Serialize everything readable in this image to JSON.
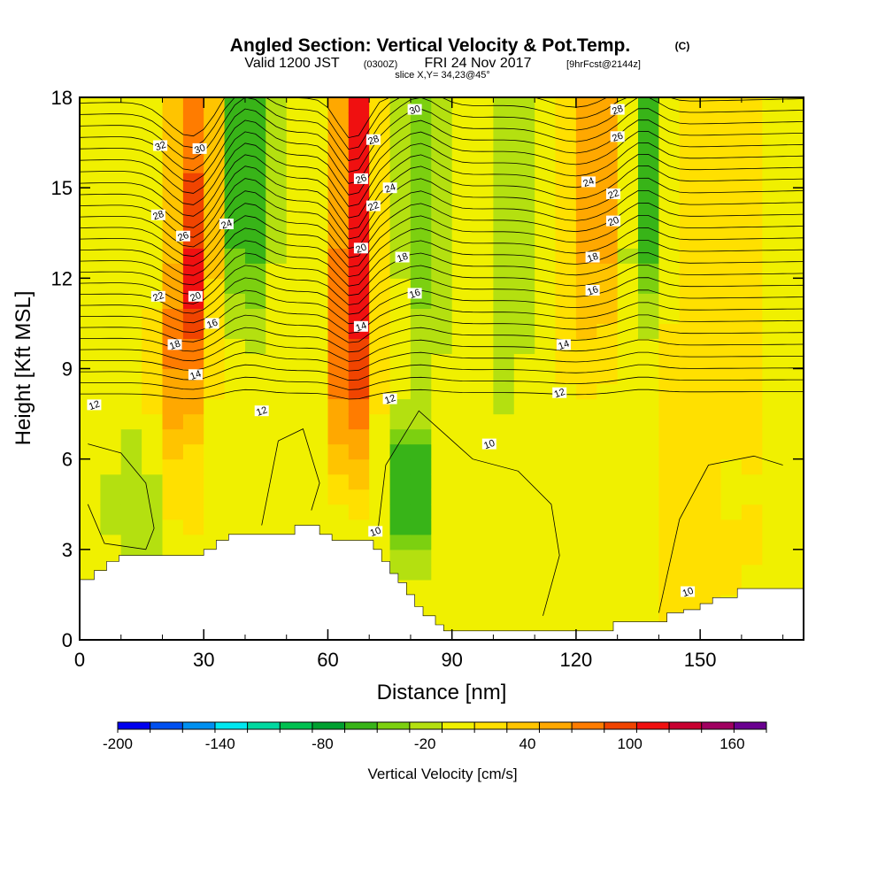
{
  "header": {
    "title_main": "Angled Section: Vertical Velocity & Pot.Temp.",
    "title_unit": "(C)",
    "valid_prefix": "Valid 1200 JST",
    "valid_utc": "(0300Z)",
    "valid_date": "FRI 24 Nov 2017",
    "valid_fcst": "[9hrFcst@2144z]",
    "slice": "slice X,Y= 34,23@45°"
  },
  "chart_data": {
    "type": "heatmap",
    "xlabel": "Distance [nm]",
    "ylabel": "Height [Kft MSL]",
    "xlim": [
      0,
      175
    ],
    "ylim": [
      0,
      18
    ],
    "x_ticks": [
      0,
      30,
      60,
      90,
      120,
      150
    ],
    "y_ticks": [
      0,
      3,
      6,
      9,
      12,
      15,
      18
    ],
    "colorbar": {
      "label": "Vertical Velocity [cm/s]",
      "min": -200,
      "max": 180,
      "step": 20,
      "tick_values": [
        -200,
        -140,
        -80,
        -20,
        40,
        100,
        160
      ],
      "colors": [
        "#0000ee",
        "#0050f0",
        "#0090f0",
        "#00e8f0",
        "#00d8a0",
        "#00c050",
        "#00a030",
        "#38b418",
        "#7cd010",
        "#b4e010",
        "#f0f000",
        "#ffe000",
        "#ffc400",
        "#ffa800",
        "#ff7c00",
        "#f04400",
        "#f01010",
        "#c80030",
        "#a00060",
        "#6a0090"
      ]
    },
    "cells": {
      "x_step": 5,
      "y_step": 0.5,
      "note_units": "x in nm, height in Kft MSL, value in cm/s"
    },
    "theta_contour_labels": [
      {
        "text": "12",
        "x": 3.5,
        "y": 7.8
      },
      {
        "text": "12",
        "x": 44,
        "y": 7.6
      },
      {
        "text": "12",
        "x": 75,
        "y": 8.0
      },
      {
        "text": "12",
        "x": 116,
        "y": 8.2
      },
      {
        "text": "14",
        "x": 28,
        "y": 8.8
      },
      {
        "text": "14",
        "x": 68,
        "y": 10.4
      },
      {
        "text": "14",
        "x": 117,
        "y": 9.8
      },
      {
        "text": "16",
        "x": 32,
        "y": 10.5
      },
      {
        "text": "16",
        "x": 81,
        "y": 11.5
      },
      {
        "text": "16",
        "x": 124,
        "y": 11.6
      },
      {
        "text": "18",
        "x": 23,
        "y": 9.8
      },
      {
        "text": "18",
        "x": 78,
        "y": 12.7
      },
      {
        "text": "18",
        "x": 124,
        "y": 12.7
      },
      {
        "text": "20",
        "x": 28,
        "y": 11.4
      },
      {
        "text": "20",
        "x": 68,
        "y": 13.0
      },
      {
        "text": "20",
        "x": 129,
        "y": 13.9
      },
      {
        "text": "22",
        "x": 19,
        "y": 11.4
      },
      {
        "text": "22",
        "x": 71,
        "y": 14.4
      },
      {
        "text": "22",
        "x": 129,
        "y": 14.8
      },
      {
        "text": "24",
        "x": 35.5,
        "y": 13.8
      },
      {
        "text": "24",
        "x": 75,
        "y": 15.0
      },
      {
        "text": "24",
        "x": 123,
        "y": 15.2
      },
      {
        "text": "26",
        "x": 25,
        "y": 13.4
      },
      {
        "text": "26",
        "x": 68,
        "y": 15.3
      },
      {
        "text": "26",
        "x": 130,
        "y": 16.7
      },
      {
        "text": "28",
        "x": 19,
        "y": 14.1
      },
      {
        "text": "28",
        "x": 71,
        "y": 16.6
      },
      {
        "text": "28",
        "x": 130,
        "y": 17.6
      },
      {
        "text": "30",
        "x": 29,
        "y": 16.3
      },
      {
        "text": "30",
        "x": 81,
        "y": 17.6
      },
      {
        "text": "32",
        "x": 19.5,
        "y": 16.4
      },
      {
        "text": "10",
        "x": 71.5,
        "y": 3.6
      },
      {
        "text": "10",
        "x": 99,
        "y": 6.5
      },
      {
        "text": "10",
        "x": 147,
        "y": 1.6
      }
    ]
  }
}
